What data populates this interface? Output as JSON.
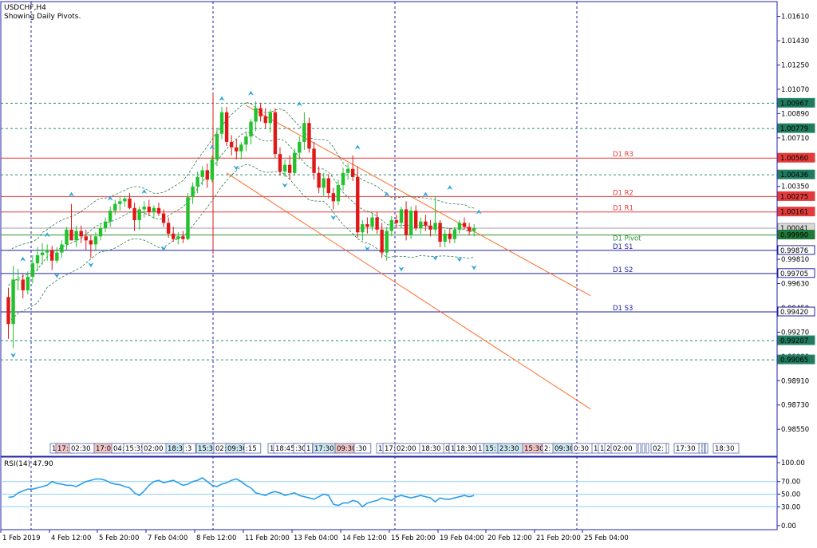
{
  "header": {
    "symbol": "USDCHF,H4",
    "subtitle": "Showing Daily Pivots."
  },
  "colors": {
    "bull": "#22c22c",
    "bear": "#e11717",
    "axis": "#2222aa",
    "pivot_resistance": "#e33b3b",
    "pivot_support": "#2020a0",
    "pivot_line": "#2f8f2f",
    "fractal": "#2aa6e0",
    "channel": "#ff6a2a",
    "envelope": "#2e7d4a",
    "rsi": "#2b9ee8",
    "rsi_level": "#8fd0f2"
  },
  "chart_data": [
    {
      "type": "line",
      "title": "USDCHF,H4",
      "subtitle": "Showing Daily Pivots.",
      "y_axis_ticks": [
        "1.01610",
        "1.01430",
        "1.01250",
        "1.01070",
        "1.00890",
        "1.00710",
        "1.00350",
        "0.99810",
        "0.99630",
        "0.99450",
        "0.99270",
        "0.99090",
        "0.98910",
        "0.98730",
        "0.98550"
      ],
      "x_axis_labels": [
        "1 Feb 2019",
        "4 Feb 12:00",
        "5 Feb 20:00",
        "7 Feb 04:00",
        "8 Feb 12:00",
        "11 Feb 20:00",
        "13 Feb 04:00",
        "14 Feb 12:00",
        "15 Feb 20:00",
        "19 Feb 04:00",
        "20 Feb 12:00",
        "21 Feb 20:00",
        "25 Feb 04:00"
      ],
      "ylim": [
        0.9835,
        1.0172
      ],
      "grid": false,
      "price_tags": [
        {
          "label": "1.00967",
          "value": 1.00967,
          "style": "teal"
        },
        {
          "label": "1.00779",
          "value": 1.00779,
          "style": "teal"
        },
        {
          "label": "1.00560",
          "value": 1.0056,
          "style": "red"
        },
        {
          "label": "1.00436",
          "value": 1.00436,
          "style": "teal"
        },
        {
          "label": "1.00275",
          "value": 1.00275,
          "style": "red"
        },
        {
          "label": "1.00161",
          "value": 1.00161,
          "style": "red"
        },
        {
          "label": "1.00041",
          "value": 1.00041,
          "style": "gray"
        },
        {
          "label": "0.99990",
          "value": 0.9999,
          "style": "green"
        },
        {
          "label": "0.99876",
          "value": 0.99876,
          "style": "blue"
        },
        {
          "label": "0.99705",
          "value": 0.99705,
          "style": "blue"
        },
        {
          "label": "0.99420",
          "value": 0.9942,
          "style": "blue"
        },
        {
          "label": "0.99207",
          "value": 0.99207,
          "style": "teal"
        },
        {
          "label": "0.99065",
          "value": 0.99065,
          "style": "teal"
        }
      ],
      "pivots": [
        {
          "name": "D1  R3",
          "value": 1.0056,
          "kind": "resistance"
        },
        {
          "name": "D1  R2",
          "value": 1.00275,
          "kind": "resistance"
        },
        {
          "name": "D1  R1",
          "value": 1.00161,
          "kind": "resistance"
        },
        {
          "name": "D1  Pivot",
          "value": 0.9999,
          "kind": "pivot"
        },
        {
          "name": "D1  S1",
          "value": 0.99876,
          "kind": "support"
        },
        {
          "name": "D1  S2",
          "value": 0.99705,
          "kind": "support"
        },
        {
          "name": "D1  S3",
          "value": 0.9942,
          "kind": "support"
        }
      ],
      "dotted_levels": [
        1.00967,
        1.00779,
        1.00436,
        0.99207,
        0.99065
      ],
      "last_price": 1.00041,
      "candles": [
        [
          0.9953,
          0.996,
          0.9922,
          0.9933
        ],
        [
          0.9933,
          0.9976,
          0.9915,
          0.9966
        ],
        [
          0.9966,
          0.9974,
          0.9958,
          0.9966
        ],
        [
          0.9966,
          0.997,
          0.9952,
          0.9958
        ],
        [
          0.9958,
          0.9972,
          0.9955,
          0.9968
        ],
        [
          0.9968,
          0.9984,
          0.9963,
          0.9978
        ],
        [
          0.9978,
          0.999,
          0.9972,
          0.9984
        ],
        [
          0.9984,
          0.9993,
          0.9977,
          0.9986
        ],
        [
          0.9986,
          0.9992,
          0.998,
          0.9988
        ],
        [
          0.9988,
          0.9991,
          0.9973,
          0.998
        ],
        [
          0.998,
          0.999,
          0.9978,
          0.9986
        ],
        [
          0.9986,
          0.9995,
          0.9982,
          0.9992
        ],
        [
          0.9992,
          1.0005,
          0.9988,
          1.0003
        ],
        [
          1.0003,
          1.0022,
          0.9996,
          0.9995
        ],
        [
          0.9995,
          1.0006,
          0.999,
          1.0002
        ],
        [
          1.0002,
          1.0006,
          0.9993,
          0.9998
        ],
        [
          0.9998,
          1.0003,
          0.9988,
          0.9995
        ],
        [
          0.9995,
          0.9999,
          0.9982,
          0.9992
        ],
        [
          0.9992,
          1.0001,
          0.9987,
          0.9998
        ],
        [
          0.9998,
          1.0007,
          0.9995,
          1.0004
        ],
        [
          1.0004,
          1.0012,
          1.0001,
          1.0009
        ],
        [
          1.0009,
          1.002,
          1.0005,
          1.0017
        ],
        [
          1.0017,
          1.0025,
          1.0014,
          1.0022
        ],
        [
          1.0022,
          1.0027,
          1.0017,
          1.0024
        ],
        [
          1.0024,
          1.0028,
          1.002,
          1.0026
        ],
        [
          1.0026,
          1.003,
          1.0018,
          1.0019
        ],
        [
          1.0019,
          1.0023,
          1.0002,
          1.001
        ],
        [
          1.001,
          1.002,
          1.0003,
          1.0018
        ],
        [
          1.0018,
          1.0024,
          1.0012,
          1.002
        ],
        [
          1.002,
          1.0025,
          1.0013,
          1.0016
        ],
        [
          1.0016,
          1.0021,
          1.0011,
          1.0019
        ],
        [
          1.0019,
          1.0023,
          1.0013,
          1.0015
        ],
        [
          1.0015,
          1.0018,
          1.0005,
          1.0008
        ],
        [
          1.0008,
          1.0012,
          0.9997,
          1.0
        ],
        [
          1.0,
          1.0005,
          0.9994,
          0.9996
        ],
        [
          0.9996,
          1.0001,
          0.9992,
          0.9998
        ],
        [
          0.9998,
          1.0002,
          0.9993,
          0.9996
        ],
        [
          0.9996,
          1.003,
          0.9995,
          1.0027
        ],
        [
          1.0027,
          1.0038,
          1.0022,
          1.0035
        ],
        [
          1.0035,
          1.0046,
          1.003,
          1.0042
        ],
        [
          1.0042,
          1.005,
          1.0036,
          1.0047
        ],
        [
          1.0047,
          1.0052,
          1.0034,
          1.004
        ],
        [
          1.004,
          1.0058,
          1.0038,
          1.0055
        ],
        [
          1.0055,
          1.0078,
          1.005,
          1.0074
        ],
        [
          1.0074,
          1.0094,
          1.007,
          1.009
        ],
        [
          1.009,
          1.0094,
          1.0065,
          1.0068
        ],
        [
          1.0068,
          1.0073,
          1.0058,
          1.0064
        ],
        [
          1.0064,
          1.007,
          1.0055,
          1.0061
        ],
        [
          1.0061,
          1.0068,
          1.0055,
          1.0066
        ],
        [
          1.0066,
          1.0075,
          1.0061,
          1.0072
        ],
        [
          1.0072,
          1.0085,
          1.0066,
          1.0083
        ],
        [
          1.0083,
          1.0098,
          1.0076,
          1.0093
        ],
        [
          1.0093,
          1.0097,
          1.0083,
          1.0087
        ],
        [
          1.0087,
          1.0093,
          1.0078,
          1.0082
        ],
        [
          1.0082,
          1.0092,
          1.0075,
          1.009
        ],
        [
          1.009,
          1.0093,
          1.0056,
          1.0059
        ],
        [
          1.0059,
          1.0064,
          1.0043,
          1.0046
        ],
        [
          1.0046,
          1.0055,
          1.0042,
          1.0051
        ],
        [
          1.0051,
          1.0058,
          1.004,
          1.0045
        ],
        [
          1.0045,
          1.0063,
          1.0043,
          1.006
        ],
        [
          1.006,
          1.0072,
          1.0055,
          1.0068
        ],
        [
          1.0068,
          1.009,
          1.0062,
          1.0082
        ],
        [
          1.0082,
          1.0086,
          1.006,
          1.0063
        ],
        [
          1.0063,
          1.0068,
          1.004,
          1.0045
        ],
        [
          1.0045,
          1.005,
          1.003,
          1.0034
        ],
        [
          1.0034,
          1.0045,
          1.0028,
          1.0041
        ],
        [
          1.0041,
          1.0044,
          1.0026,
          1.003
        ],
        [
          1.003,
          1.0034,
          1.0018,
          1.0024
        ],
        [
          1.0024,
          1.004,
          1.0021,
          1.0036
        ],
        [
          1.0036,
          1.0049,
          1.0032,
          1.0045
        ],
        [
          1.0045,
          1.0052,
          1.004,
          1.0048
        ],
        [
          1.0048,
          1.0058,
          1.0039,
          1.0042
        ],
        [
          1.0042,
          1.005,
          0.9997,
          1.0001
        ],
        [
          1.0001,
          1.001,
          0.9995,
          1.0007
        ],
        [
          1.0007,
          1.0012,
          1.0,
          1.0005
        ],
        [
          1.0005,
          1.0015,
          1.0002,
          1.0012
        ],
        [
          1.0012,
          1.0016,
          1.0,
          1.0003
        ],
        [
          1.0003,
          1.0008,
          0.9982,
          0.9986
        ],
        [
          0.9986,
          1.0005,
          0.998,
          1.0002
        ],
        [
          1.0002,
          1.0013,
          0.9998,
          1.001
        ],
        [
          1.001,
          1.0014,
          1.0004,
          1.0008
        ],
        [
          1.0008,
          1.002,
          1.0004,
          1.0018
        ],
        [
          1.0018,
          1.0024,
          0.9995,
          0.9999
        ],
        [
          0.9999,
          1.002,
          0.9996,
          1.0017
        ],
        [
          1.0017,
          1.0021,
          1.0002,
          1.0004
        ],
        [
          1.0004,
          1.0012,
          1.0,
          1.0009
        ],
        [
          1.0009,
          1.0014,
          1.0002,
          1.0006
        ],
        [
          1.0006,
          1.001,
          0.9998,
          1.0003
        ],
        [
          1.0003,
          1.0028,
          1.0,
          1.0008
        ],
        [
          1.0008,
          1.001,
          0.999,
          0.9994
        ],
        [
          0.9994,
          1.0003,
          0.999,
          1.0
        ],
        [
          1.0,
          1.0004,
          0.9993,
          0.9996
        ],
        [
          0.9996,
          1.0005,
          0.9993,
          1.0003
        ],
        [
          1.0003,
          1.001,
          1.0,
          1.0008
        ],
        [
          1.0008,
          1.0012,
          1.0003,
          1.0005
        ],
        [
          1.0005,
          1.0008,
          0.9999,
          1.0002
        ],
        [
          1.0002,
          1.0007,
          0.9998,
          1.0004
        ]
      ],
      "fractals": [
        {
          "index": 1,
          "dir": "down",
          "value": 0.9911
        },
        {
          "index": 3,
          "dir": "up",
          "value": 0.998
        },
        {
          "index": 8,
          "dir": "up",
          "value": 0.9998
        },
        {
          "index": 10,
          "dir": "down",
          "value": 0.997
        },
        {
          "index": 13,
          "dir": "up",
          "value": 1.0028
        },
        {
          "index": 17,
          "dir": "down",
          "value": 0.9978
        },
        {
          "index": 21,
          "dir": "up",
          "value": 1.0025
        },
        {
          "index": 28,
          "dir": "up",
          "value": 1.003
        },
        {
          "index": 32,
          "dir": "down",
          "value": 0.999
        },
        {
          "index": 42,
          "dir": "up",
          "value": 1.0063
        },
        {
          "index": 44,
          "dir": "up",
          "value": 1.0099
        },
        {
          "index": 47,
          "dir": "down",
          "value": 1.005
        },
        {
          "index": 50,
          "dir": "up",
          "value": 1.0103
        },
        {
          "index": 57,
          "dir": "down",
          "value": 1.0037
        },
        {
          "index": 60,
          "dir": "up",
          "value": 1.0095
        },
        {
          "index": 67,
          "dir": "down",
          "value": 1.0013
        },
        {
          "index": 72,
          "dir": "up",
          "value": 1.0063
        },
        {
          "index": 74,
          "dir": "down",
          "value": 0.999
        },
        {
          "index": 78,
          "dir": "up",
          "value": 1.0028
        },
        {
          "index": 81,
          "dir": "down",
          "value": 0.9975
        },
        {
          "index": 86,
          "dir": "up",
          "value": 1.0028
        },
        {
          "index": 88,
          "dir": "down",
          "value": 0.9983
        },
        {
          "index": 91,
          "dir": "up",
          "value": 1.0033
        },
        {
          "index": 93,
          "dir": "down",
          "value": 0.9982
        },
        {
          "index": 96,
          "dir": "down",
          "value": 0.9976
        },
        {
          "index": 97,
          "dir": "up",
          "value": 1.0015
        }
      ],
      "channel": {
        "upper": [
          [
            49,
            1.0095
          ],
          [
            120,
            0.9954
          ]
        ],
        "lower": [
          [
            45,
            1.0045
          ],
          [
            120,
            0.987
          ]
        ]
      }
    },
    {
      "type": "line",
      "title": "RSI(14) 47.90",
      "label": "RSI(14)",
      "current_value": "47.90",
      "ylim": [
        0,
        100
      ],
      "levels": [
        30,
        50,
        70
      ],
      "y_axis_ticks": [
        "100.00",
        "70.00",
        "50.00",
        "30.00",
        "0.00"
      ],
      "values": [
        45,
        46,
        52,
        55,
        58,
        58,
        60,
        62,
        64,
        70,
        67,
        66,
        64,
        64,
        62,
        66,
        70,
        72,
        74,
        74,
        72,
        68,
        66,
        65,
        62,
        60,
        52,
        48,
        55,
        64,
        70,
        72,
        68,
        70,
        72,
        68,
        64,
        66,
        70,
        72,
        76,
        70,
        64,
        62,
        66,
        68,
        72,
        74,
        70,
        64,
        60,
        52,
        50,
        48,
        52,
        54,
        52,
        48,
        50,
        52,
        48,
        46,
        44,
        42,
        46,
        50,
        48,
        34,
        32,
        36,
        36,
        40,
        38,
        30,
        36,
        38,
        40,
        44,
        42,
        40,
        46,
        48,
        46,
        44,
        46,
        48,
        46,
        44,
        38,
        44,
        42,
        42,
        44,
        46,
        48,
        46,
        47.9
      ]
    }
  ]
}
